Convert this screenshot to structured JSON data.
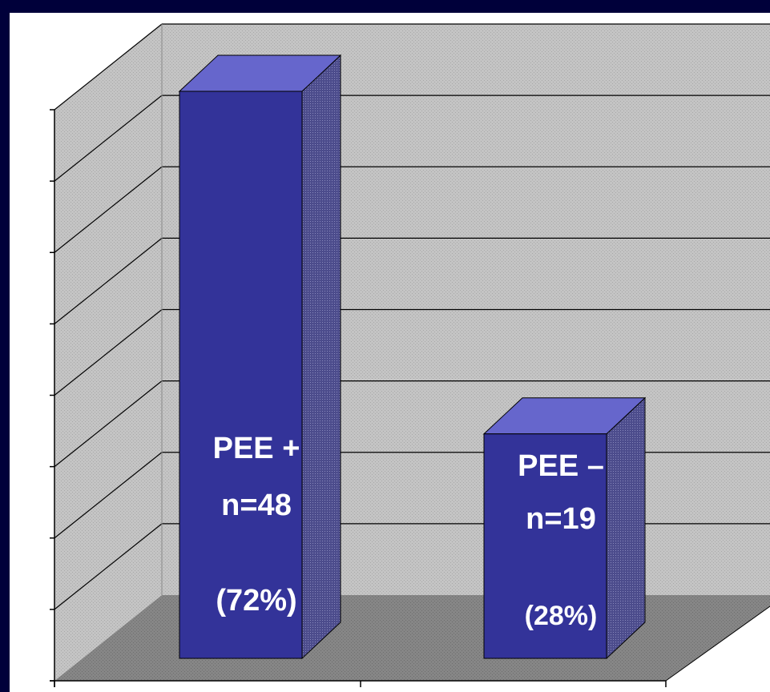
{
  "chart_data": {
    "type": "bar",
    "style": "3d",
    "title": "",
    "xlabel": "",
    "ylabel": "",
    "grid": true,
    "legend": "none",
    "categories": [
      "PEE +",
      "PEE –"
    ],
    "series": [
      {
        "values": [
          48,
          19
        ]
      }
    ],
    "percentages": [
      "(72%)",
      "(28%)"
    ],
    "counts": [
      "n=48",
      "n=19"
    ],
    "colors": {
      "background": "#00003a",
      "bar_front": "#333399",
      "bar_top": "#6666cc",
      "bar_side": "#4a4a88",
      "wall": "#c0c0c0",
      "floor": "#808080"
    }
  }
}
